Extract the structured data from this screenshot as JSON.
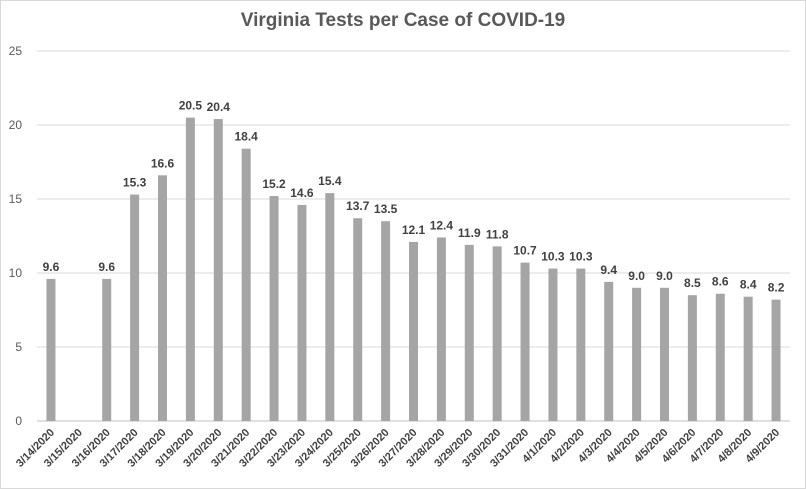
{
  "chart_data": {
    "type": "bar",
    "title": "Virginia Tests per Case of COVID-19",
    "xlabel": "",
    "ylabel": "",
    "ylim": [
      0,
      25
    ],
    "yticks": [
      0,
      5,
      10,
      15,
      20,
      25
    ],
    "grid": true,
    "legend": "none",
    "bar_color": "#a5a5a5",
    "categories": [
      "3/14/2020",
      "3/15/2020",
      "3/16/2020",
      "3/17/2020",
      "3/18/2020",
      "3/19/2020",
      "3/20/2020",
      "3/21/2020",
      "3/22/2020",
      "3/23/2020",
      "3/24/2020",
      "3/25/2020",
      "3/26/2020",
      "3/27/2020",
      "3/28/2020",
      "3/29/2020",
      "3/30/2020",
      "3/31/2020",
      "4/1/2020",
      "4/2/2020",
      "4/3/2020",
      "4/4/2020",
      "4/5/2020",
      "4/6/2020",
      "4/7/2020",
      "4/8/2020",
      "4/9/2020"
    ],
    "values": [
      9.6,
      null,
      9.6,
      15.3,
      16.6,
      20.5,
      20.4,
      18.4,
      15.2,
      14.6,
      15.4,
      13.7,
      13.5,
      12.1,
      12.4,
      11.9,
      11.8,
      10.7,
      10.3,
      10.3,
      9.4,
      9.0,
      9.0,
      8.5,
      8.6,
      8.4,
      8.2
    ],
    "data_labels": [
      "9.6",
      "",
      "9.6",
      "15.3",
      "16.6",
      "20.5",
      "20.4",
      "18.4",
      "15.2",
      "14.6",
      "15.4",
      "13.7",
      "13.5",
      "12.1",
      "12.4",
      "11.9",
      "11.8",
      "10.7",
      "10.3",
      "10.3",
      "9.4",
      "9.0",
      "9.0",
      "8.5",
      "8.6",
      "8.4",
      "8.2"
    ]
  }
}
